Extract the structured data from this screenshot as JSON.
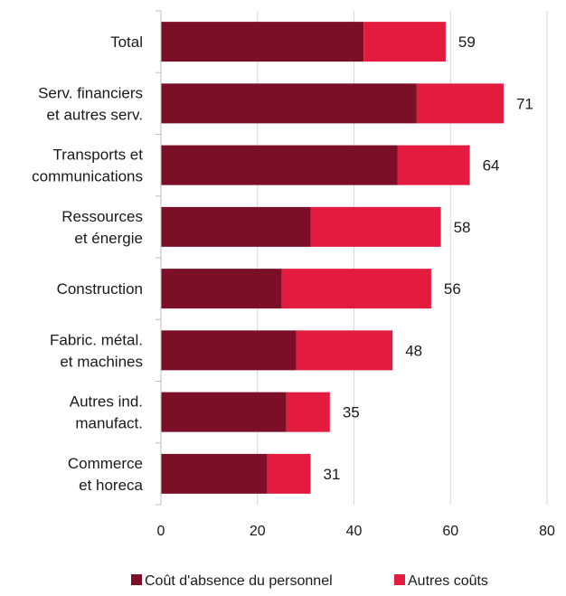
{
  "chart_data": {
    "type": "bar",
    "orientation": "horizontal",
    "stacked": true,
    "categories": [
      [
        "Total"
      ],
      [
        "Serv. financiers",
        "et autres serv."
      ],
      [
        "Transports et",
        "communications"
      ],
      [
        "Ressources",
        "et énergie"
      ],
      [
        "Construction"
      ],
      [
        "Fabric. métal.",
        "et machines"
      ],
      [
        "Autres ind.",
        "manufact."
      ],
      [
        "Commerce",
        "et horeca"
      ]
    ],
    "series": [
      {
        "name": "Coût d'absence du personnel",
        "color": "#7b0f28",
        "values": [
          42,
          53,
          49,
          31,
          25,
          28,
          26,
          22
        ]
      },
      {
        "name": "Autres coûts",
        "color": "#e31b3f",
        "values": [
          17,
          18,
          15,
          27,
          31,
          20,
          9,
          9
        ]
      }
    ],
    "totals": [
      "59",
      "71",
      "64",
      "58",
      "56",
      "48",
      "35",
      "31"
    ],
    "xlim": [
      0,
      80
    ],
    "xticks": [
      "0",
      "20",
      "40",
      "60",
      "80"
    ],
    "grid": "vertical",
    "legend_position": "bottom"
  }
}
